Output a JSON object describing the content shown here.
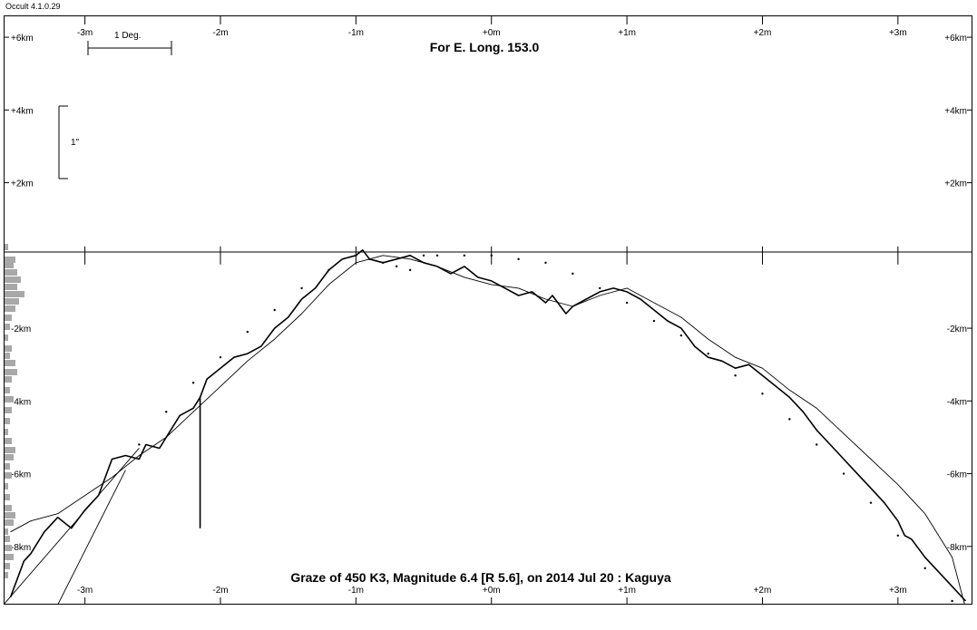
{
  "app": {
    "title": "Occult 4.1.0.29"
  },
  "chart_data": {
    "type": "line",
    "title": "For E. Long. 153.0",
    "subtitle": "Graze of  450 K3,  Magnitude 6.4 [R 5.6],  on 2014 Jul 20  :  Kaguya",
    "x_ticks": [
      "-3m",
      "-2m",
      "-1m",
      "+0m",
      "+1m",
      "+2m",
      "+3m"
    ],
    "x_tick_values": [
      -3,
      -2,
      -1,
      0,
      1,
      2,
      3
    ],
    "y_ticks": [
      "+6km",
      "+4km",
      "+2km",
      "-2km",
      "-4km",
      "-6km",
      "-8km"
    ],
    "y_tick_values": [
      6,
      4,
      2,
      -2,
      -4,
      -6,
      -8
    ],
    "xlim": [
      -3.6,
      3.55
    ],
    "ylim": [
      -9.6,
      6.6
    ],
    "scale_labels": {
      "degree": "1 Deg.",
      "arcsec": "1\""
    },
    "series": [
      {
        "style": "profile",
        "x": [
          -3.55,
          -3.45,
          -3.4,
          -3.3,
          -3.2,
          -3.1,
          -3.0,
          -2.9,
          -2.8,
          -2.7,
          -2.6,
          -2.55,
          -2.45,
          -2.35,
          -2.3,
          -2.2,
          -2.15,
          -2.1,
          -2.0,
          -1.9,
          -1.8,
          -1.7,
          -1.6,
          -1.5,
          -1.4,
          -1.3,
          -1.2,
          -1.1,
          -1.0,
          -0.95,
          -0.9,
          -0.8,
          -0.7,
          -0.6,
          -0.5,
          -0.4,
          -0.3,
          -0.2,
          -0.1,
          0.0,
          0.1,
          0.2,
          0.3,
          0.4,
          0.45,
          0.55,
          0.6,
          0.7,
          0.8,
          0.9,
          1.0,
          1.1,
          1.2,
          1.3,
          1.4,
          1.5,
          1.6,
          1.7,
          1.8,
          1.9,
          2.0,
          2.1,
          2.2,
          2.3,
          2.4,
          2.5,
          2.6,
          2.7,
          2.8,
          2.9,
          3.0,
          3.05,
          3.1,
          3.2,
          3.3,
          3.4,
          3.5
        ],
        "y": [
          -9.4,
          -8.4,
          -8.2,
          -7.6,
          -7.2,
          -7.5,
          -7.0,
          -6.6,
          -5.6,
          -5.5,
          -5.6,
          -5.2,
          -5.3,
          -4.7,
          -4.4,
          -4.2,
          -3.9,
          -3.4,
          -3.1,
          -2.8,
          -2.7,
          -2.5,
          -2.0,
          -1.7,
          -1.2,
          -0.9,
          -0.4,
          -0.1,
          0.0,
          0.15,
          -0.1,
          -0.2,
          -0.1,
          0.0,
          -0.2,
          -0.3,
          -0.5,
          -0.3,
          -0.6,
          -0.7,
          -0.9,
          -1.1,
          -1.0,
          -1.3,
          -1.1,
          -1.6,
          -1.4,
          -1.2,
          -1.0,
          -0.9,
          -1.0,
          -1.2,
          -1.5,
          -1.8,
          -2.0,
          -2.5,
          -2.8,
          -2.9,
          -3.1,
          -3.0,
          -3.3,
          -3.6,
          -3.9,
          -4.3,
          -4.8,
          -5.2,
          -5.6,
          -6.0,
          -6.4,
          -6.8,
          -7.3,
          -7.7,
          -7.8,
          -8.3,
          -8.7,
          -9.1,
          -9.5
        ]
      },
      {
        "style": "smoothed",
        "x": [
          -3.55,
          -3.4,
          -3.2,
          -3.0,
          -2.8,
          -2.6,
          -2.4,
          -2.2,
          -2.0,
          -1.8,
          -1.6,
          -1.4,
          -1.2,
          -1.0,
          -0.8,
          -0.6,
          -0.4,
          -0.2,
          0.0,
          0.2,
          0.4,
          0.6,
          0.8,
          1.0,
          1.2,
          1.4,
          1.6,
          1.8,
          2.0,
          2.2,
          2.4,
          2.6,
          2.8,
          3.0,
          3.2,
          3.4,
          3.5
        ],
        "y": [
          -7.6,
          -7.3,
          -7.1,
          -6.6,
          -6.1,
          -5.5,
          -5.0,
          -4.3,
          -3.6,
          -2.9,
          -2.3,
          -1.6,
          -0.8,
          -0.2,
          0.0,
          -0.1,
          -0.3,
          -0.6,
          -0.8,
          -0.9,
          -1.2,
          -1.4,
          -1.1,
          -0.9,
          -1.3,
          -1.7,
          -2.3,
          -2.8,
          -3.1,
          -3.7,
          -4.2,
          -4.9,
          -5.6,
          -6.3,
          -7.1,
          -8.3,
          -9.7
        ]
      },
      {
        "style": "dotted",
        "x": [
          -2.6,
          -2.4,
          -2.2,
          -2.0,
          -1.8,
          -1.6,
          -1.4,
          -1.2,
          -1.0,
          -0.9,
          -0.8,
          -0.7,
          -0.6,
          -0.5,
          -0.4,
          -0.2,
          0.0,
          0.2,
          0.4,
          0.6,
          0.8,
          1.0,
          1.2,
          1.4,
          1.6,
          1.8,
          2.0,
          2.2,
          2.4,
          2.6,
          2.8,
          3.0,
          3.2,
          3.4
        ],
        "y": [
          -5.2,
          -4.3,
          -3.5,
          -2.8,
          -2.1,
          -1.5,
          -0.9,
          -0.4,
          0.0,
          -0.1,
          -0.2,
          -0.3,
          -0.4,
          0.0,
          0.0,
          0.0,
          0.0,
          -0.1,
          -0.2,
          -0.5,
          -0.9,
          -1.3,
          -1.8,
          -2.2,
          -2.7,
          -3.3,
          -3.8,
          -4.5,
          -5.2,
          -6.0,
          -6.8,
          -7.7,
          -8.6,
          -9.5
        ]
      }
    ],
    "tangent_lines": [
      {
        "x": [
          -3.6,
          -2.6
        ],
        "y": [
          -9.6,
          -5.3
        ]
      },
      {
        "x": [
          -3.2,
          -2.7
        ],
        "y": [
          -9.6,
          -5.9
        ]
      }
    ],
    "annotations": [
      {
        "type": "vertical-spike",
        "x": -2.15,
        "y_top": -3.9,
        "y_bottom": -7.5
      }
    ]
  }
}
